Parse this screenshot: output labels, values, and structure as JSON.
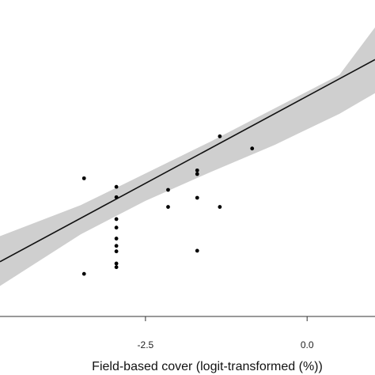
{
  "chart_data": {
    "type": "scatter",
    "xlabel": "Field-based cover (logit-transformed (%))",
    "ylabel": "",
    "xlim": [
      -4.75,
      1.05
    ],
    "ylim": [
      -4.3,
      0.9
    ],
    "x_ticks": [
      -2.5,
      0.0
    ],
    "x_tick_labels": [
      "-2.5",
      "0.0"
    ],
    "grid": false,
    "points": [
      {
        "x": -3.45,
        "y": -2.03
      },
      {
        "x": -3.45,
        "y": -3.6
      },
      {
        "x": -2.95,
        "y": -2.17
      },
      {
        "x": -2.95,
        "y": -2.34
      },
      {
        "x": -2.95,
        "y": -2.7
      },
      {
        "x": -2.95,
        "y": -2.84
      },
      {
        "x": -2.95,
        "y": -3.02
      },
      {
        "x": -2.95,
        "y": -3.14
      },
      {
        "x": -2.95,
        "y": -3.23
      },
      {
        "x": -2.95,
        "y": -3.43
      },
      {
        "x": -2.95,
        "y": -3.49
      },
      {
        "x": -2.15,
        "y": -2.22
      },
      {
        "x": -2.15,
        "y": -2.5
      },
      {
        "x": -1.7,
        "y": -1.9
      },
      {
        "x": -1.7,
        "y": -1.96
      },
      {
        "x": -1.7,
        "y": -2.35
      },
      {
        "x": -1.7,
        "y": -3.22
      },
      {
        "x": -1.35,
        "y": -1.34
      },
      {
        "x": -1.35,
        "y": -2.5
      },
      {
        "x": -0.85,
        "y": -1.54
      }
    ],
    "fit_line": {
      "x": [
        -4.75,
        1.05
      ],
      "y": [
        -3.4,
        -0.08
      ]
    },
    "confidence_band": {
      "x": [
        -4.75,
        -3.5,
        -2.5,
        -1.5,
        -0.5,
        0.5,
        1.05
      ],
      "lower": [
        -3.8,
        -2.95,
        -2.4,
        -1.93,
        -1.48,
        -0.97,
        -0.63
      ],
      "upper": [
        -2.98,
        -2.47,
        -1.95,
        -1.43,
        -0.88,
        -0.33,
        0.45
      ]
    }
  }
}
